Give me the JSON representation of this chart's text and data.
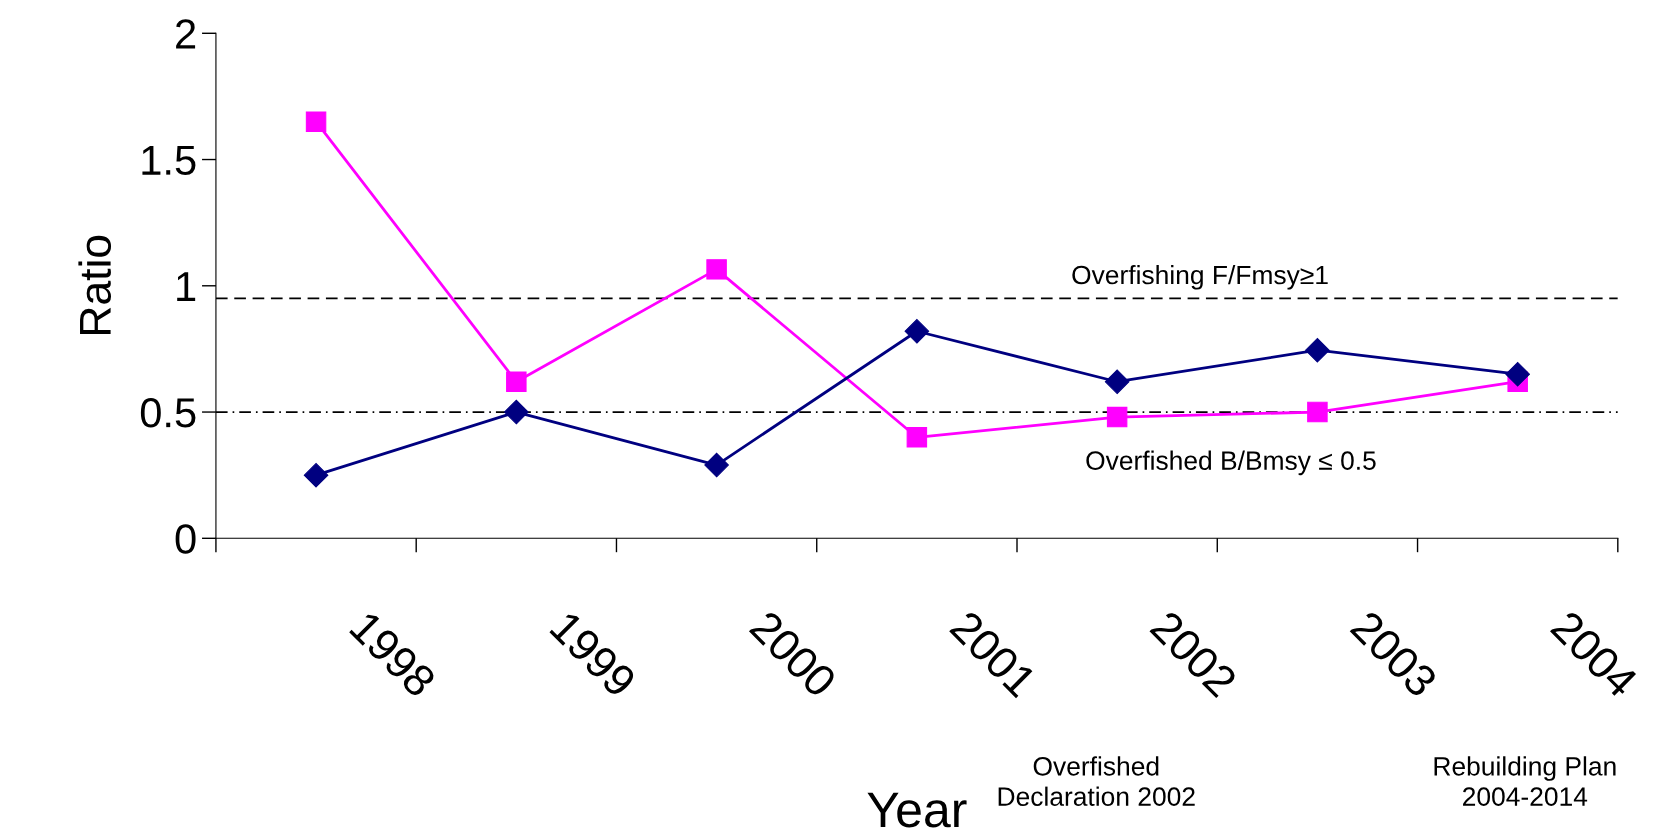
{
  "chart_data": {
    "type": "line",
    "xlabel": "Year",
    "ylabel": "Ratio",
    "categories": [
      "1998",
      "1999",
      "2000",
      "2001",
      "2002",
      "2003",
      "2004"
    ],
    "series": [
      {
        "color": "#000080",
        "marker": "diamond",
        "values": [
          0.25,
          0.5,
          0.29,
          0.82,
          0.62,
          0.745,
          0.65
        ]
      },
      {
        "color": "#ff00ff",
        "marker": "square",
        "values": [
          1.65,
          0.62,
          1.065,
          0.4,
          0.48,
          0.5,
          0.62
        ]
      }
    ],
    "ylim": [
      0,
      2
    ],
    "yticks": [
      0,
      0.5,
      1,
      1.5,
      2
    ],
    "grid": false,
    "legend": false,
    "ref_lines": [
      {
        "axis": "y",
        "value": 0.95,
        "label": "Overfishing F/Fmsy≥1",
        "color": "#000000",
        "line_style": "dashed"
      },
      {
        "axis": "y",
        "value": 0.5,
        "label": "Overfished B/Bmsy ≤ 0.5",
        "color": "#000000",
        "line_style": "dashdot"
      }
    ],
    "annotations": [
      "Overfished\nDeclaration 2002",
      "Rebuilding Plan\n2004-2014"
    ]
  }
}
